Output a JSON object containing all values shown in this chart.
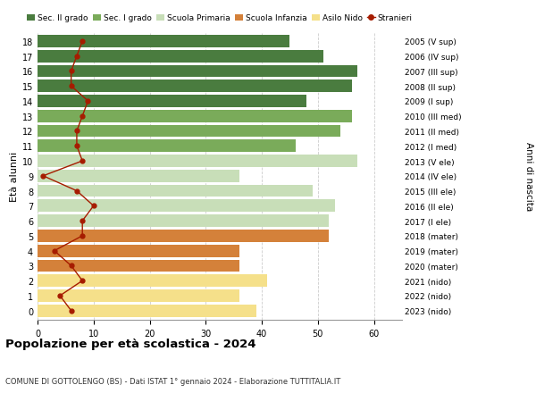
{
  "ages": [
    18,
    17,
    16,
    15,
    14,
    13,
    12,
    11,
    10,
    9,
    8,
    7,
    6,
    5,
    4,
    3,
    2,
    1,
    0
  ],
  "right_labels": [
    "2005 (V sup)",
    "2006 (IV sup)",
    "2007 (III sup)",
    "2008 (II sup)",
    "2009 (I sup)",
    "2010 (III med)",
    "2011 (II med)",
    "2012 (I med)",
    "2013 (V ele)",
    "2014 (IV ele)",
    "2015 (III ele)",
    "2016 (II ele)",
    "2017 (I ele)",
    "2018 (mater)",
    "2019 (mater)",
    "2020 (mater)",
    "2021 (nido)",
    "2022 (nido)",
    "2023 (nido)"
  ],
  "bar_values": [
    45,
    51,
    57,
    56,
    48,
    56,
    54,
    46,
    57,
    36,
    49,
    53,
    52,
    52,
    36,
    36,
    41,
    36,
    39
  ],
  "bar_colors": [
    "#4a7c3f",
    "#4a7c3f",
    "#4a7c3f",
    "#4a7c3f",
    "#4a7c3f",
    "#7aab5a",
    "#7aab5a",
    "#7aab5a",
    "#c8deb8",
    "#c8deb8",
    "#c8deb8",
    "#c8deb8",
    "#c8deb8",
    "#d4813a",
    "#d4813a",
    "#d4813a",
    "#f5e08a",
    "#f5e08a",
    "#f5e08a"
  ],
  "stranieri_values": [
    8,
    7,
    6,
    6,
    9,
    8,
    7,
    7,
    8,
    1,
    7,
    10,
    8,
    8,
    3,
    6,
    8,
    4,
    6
  ],
  "stranieri_color": "#a61c00",
  "legend_labels": [
    "Sec. II grado",
    "Sec. I grado",
    "Scuola Primaria",
    "Scuola Infanzia",
    "Asilo Nido",
    "Stranieri"
  ],
  "legend_colors": [
    "#4a7c3f",
    "#7aab5a",
    "#c8deb8",
    "#d4813a",
    "#f5e08a",
    "#a61c00"
  ],
  "title": "Popolazione per età scolastica - 2024",
  "subtitle": "COMUNE DI GOTTOLENGO (BS) - Dati ISTAT 1° gennaio 2024 - Elaborazione TUTTITALIA.IT",
  "ylabel_left": "Età alunni",
  "ylabel_right": "Anni di nascita",
  "xlim": [
    0,
    65
  ],
  "xticks": [
    0,
    10,
    20,
    30,
    40,
    50,
    60
  ],
  "background_color": "#ffffff",
  "bar_height": 0.82,
  "grid_color": "#cccccc"
}
